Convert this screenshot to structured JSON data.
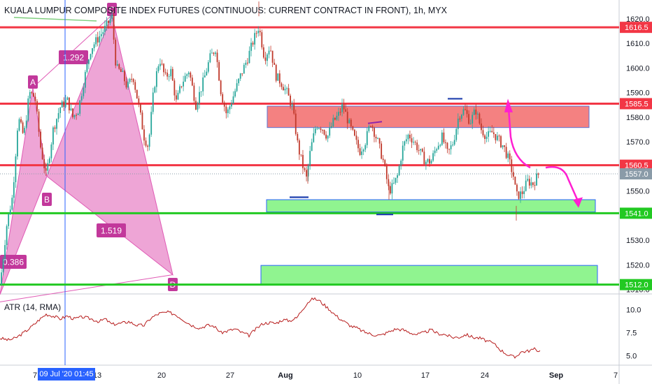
{
  "header": {
    "title": "KUALA LUMPUR COMPOSITE INDEX FUTURES (CONTINUOUS: CURRENT CONTRACT IN FRONT), 1h, MYX"
  },
  "indicator": {
    "title": "ATR (14, RMA)",
    "ticks": [
      "10.0",
      "7.5",
      "5.0"
    ],
    "tick_values": [
      10.0,
      7.5,
      5.0
    ],
    "range": [
      4.2,
      11.4
    ],
    "color": "#b71c1c"
  },
  "crosshair": {
    "date_label": "09 Jul '20   01:45"
  },
  "price_axis": {
    "ticks": [
      "1620.0",
      "1610.0",
      "1600.0",
      "1590.0",
      "1580.0",
      "1570.0",
      "1560.0",
      "1550.0",
      "1540.0",
      "1530.0",
      "1520.0",
      "1510.0"
    ],
    "tick_values": [
      1620,
      1610,
      1600,
      1590,
      1580,
      1570,
      1560,
      1550,
      1540,
      1530,
      1520,
      1510
    ],
    "range": [
      1508.5,
      1622.5
    ]
  },
  "time_axis": {
    "labels": [
      "7",
      "13",
      "20",
      "27",
      "Aug",
      "10",
      "17",
      "24",
      "Sep",
      "7"
    ],
    "bold": [
      "Aug",
      "Sep"
    ]
  },
  "levels": [
    {
      "label": "1616.5",
      "value": 1616.5,
      "color": "#f23645"
    },
    {
      "label": "1585.5",
      "value": 1585.5,
      "color": "#f23645"
    },
    {
      "label": "1560.5",
      "value": 1560.5,
      "color": "#f23645"
    },
    {
      "label": "1541.0",
      "value": 1541.0,
      "color": "#22c922"
    },
    {
      "label": "1512.0",
      "value": 1512.0,
      "color": "#22c922"
    }
  ],
  "last_price": {
    "label": "1557.0",
    "value": 1557.0,
    "color": "#8a9ba8"
  },
  "zones": [
    {
      "type": "resistance",
      "top": 1584.5,
      "bottom": 1575.8,
      "color": "#f26b6b"
    },
    {
      "type": "support",
      "top": 1546.5,
      "bottom": 1541.5,
      "color": "#7df27d"
    },
    {
      "type": "support",
      "top": 1519.8,
      "bottom": 1511.8,
      "color": "#7df27d"
    }
  ],
  "pattern": {
    "points": [
      {
        "label": "A",
        "value": 1592
      },
      {
        "label": "B",
        "value": 1556
      },
      {
        "label": "C",
        "value": 1621.5
      },
      {
        "label": "D",
        "value": 1516
      }
    ],
    "ratios": [
      "1.292",
      "1.519",
      "0.386"
    ],
    "color": "#e05bb5"
  },
  "candles": {
    "up_color": "#26a69a",
    "down_color": "#c0392b",
    "anchors": [
      [
        0,
        1512
      ],
      [
        10,
        1537
      ],
      [
        18,
        1548
      ],
      [
        26,
        1580
      ],
      [
        34,
        1572
      ],
      [
        42,
        1590
      ],
      [
        50,
        1588
      ],
      [
        58,
        1568
      ],
      [
        66,
        1556
      ],
      [
        76,
        1575
      ],
      [
        86,
        1584
      ],
      [
        96,
        1587
      ],
      [
        104,
        1580
      ],
      [
        112,
        1583
      ],
      [
        120,
        1595
      ],
      [
        130,
        1608
      ],
      [
        140,
        1612
      ],
      [
        150,
        1616
      ],
      [
        160,
        1621
      ],
      [
        166,
        1600
      ],
      [
        174,
        1598
      ],
      [
        182,
        1592
      ],
      [
        190,
        1597
      ],
      [
        198,
        1585
      ],
      [
        206,
        1572
      ],
      [
        212,
        1568
      ],
      [
        220,
        1592
      ],
      [
        228,
        1604
      ],
      [
        236,
        1596
      ],
      [
        244,
        1599
      ],
      [
        252,
        1586
      ],
      [
        260,
        1594
      ],
      [
        270,
        1599
      ],
      [
        280,
        1585
      ],
      [
        290,
        1594
      ],
      [
        300,
        1604
      ],
      [
        308,
        1608
      ],
      [
        316,
        1590
      ],
      [
        324,
        1581
      ],
      [
        334,
        1589
      ],
      [
        344,
        1597
      ],
      [
        354,
        1604
      ],
      [
        362,
        1611
      ],
      [
        370,
        1617
      ],
      [
        378,
        1604
      ],
      [
        386,
        1609
      ],
      [
        394,
        1597
      ],
      [
        402,
        1594
      ],
      [
        410,
        1590
      ],
      [
        418,
        1584
      ],
      [
        426,
        1568
      ],
      [
        432,
        1561
      ],
      [
        438,
        1555
      ],
      [
        444,
        1567
      ],
      [
        452,
        1577
      ],
      [
        460,
        1576
      ],
      [
        468,
        1572
      ],
      [
        476,
        1578
      ],
      [
        484,
        1581
      ],
      [
        490,
        1585
      ],
      [
        498,
        1578
      ],
      [
        506,
        1572
      ],
      [
        514,
        1566
      ],
      [
        522,
        1570
      ],
      [
        530,
        1578
      ],
      [
        540,
        1570
      ],
      [
        548,
        1562
      ],
      [
        556,
        1550
      ],
      [
        562,
        1552
      ],
      [
        568,
        1556
      ],
      [
        576,
        1568
      ],
      [
        584,
        1573
      ],
      [
        592,
        1570
      ],
      [
        600,
        1566
      ],
      [
        608,
        1562
      ],
      [
        616,
        1562
      ],
      [
        624,
        1568
      ],
      [
        632,
        1572
      ],
      [
        640,
        1565
      ],
      [
        648,
        1570
      ],
      [
        656,
        1581
      ],
      [
        664,
        1583
      ],
      [
        672,
        1578
      ],
      [
        680,
        1583
      ],
      [
        688,
        1575
      ],
      [
        696,
        1572
      ],
      [
        704,
        1574
      ],
      [
        712,
        1571
      ],
      [
        720,
        1568
      ],
      [
        728,
        1562
      ],
      [
        734,
        1556
      ],
      [
        738,
        1548
      ],
      [
        746,
        1549
      ],
      [
        754,
        1554
      ],
      [
        762,
        1553
      ],
      [
        770,
        1557
      ]
    ]
  },
  "atr_series": {
    "anchors": [
      [
        0,
        6.9
      ],
      [
        12,
        6.7
      ],
      [
        22,
        6.9
      ],
      [
        34,
        7.5
      ],
      [
        46,
        8.2
      ],
      [
        56,
        8.9
      ],
      [
        66,
        9.5
      ],
      [
        76,
        9.3
      ],
      [
        86,
        9.0
      ],
      [
        96,
        9.3
      ],
      [
        106,
        9.0
      ],
      [
        118,
        9.2
      ],
      [
        130,
        9.0
      ],
      [
        142,
        8.7
      ],
      [
        150,
        9.0
      ],
      [
        160,
        8.4
      ],
      [
        172,
        8.5
      ],
      [
        184,
        8.7
      ],
      [
        196,
        8.3
      ],
      [
        206,
        8.3
      ],
      [
        216,
        9.1
      ],
      [
        228,
        9.6
      ],
      [
        240,
        9.7
      ],
      [
        250,
        9.5
      ],
      [
        262,
        8.9
      ],
      [
        274,
        8.3
      ],
      [
        286,
        8.0
      ],
      [
        296,
        8.3
      ],
      [
        306,
        8.2
      ],
      [
        316,
        7.5
      ],
      [
        326,
        7.7
      ],
      [
        336,
        7.9
      ],
      [
        346,
        7.5
      ],
      [
        356,
        7.2
      ],
      [
        366,
        7.9
      ],
      [
        376,
        8.5
      ],
      [
        386,
        8.6
      ],
      [
        394,
        8.5
      ],
      [
        404,
        8.9
      ],
      [
        414,
        8.8
      ],
      [
        424,
        9.1
      ],
      [
        432,
        10.0
      ],
      [
        440,
        10.8
      ],
      [
        448,
        11.2
      ],
      [
        456,
        11.0
      ],
      [
        462,
        10.6
      ],
      [
        470,
        10.1
      ],
      [
        478,
        9.5
      ],
      [
        486,
        9.0
      ],
      [
        494,
        8.6
      ],
      [
        502,
        8.2
      ],
      [
        510,
        8.0
      ],
      [
        520,
        7.6
      ],
      [
        532,
        7.3
      ],
      [
        544,
        7.2
      ],
      [
        556,
        7.6
      ],
      [
        566,
        7.9
      ],
      [
        576,
        7.8
      ],
      [
        586,
        7.5
      ],
      [
        596,
        7.3
      ],
      [
        606,
        7.5
      ],
      [
        616,
        7.8
      ],
      [
        626,
        7.4
      ],
      [
        636,
        7.3
      ],
      [
        646,
        7.0
      ],
      [
        656,
        7.0
      ],
      [
        666,
        7.3
      ],
      [
        676,
        7.0
      ],
      [
        686,
        6.9
      ],
      [
        696,
        6.6
      ],
      [
        706,
        6.3
      ],
      [
        716,
        5.6
      ],
      [
        726,
        5.1
      ],
      [
        736,
        4.8
      ],
      [
        744,
        5.4
      ],
      [
        754,
        5.5
      ],
      [
        764,
        5.7
      ],
      [
        772,
        5.5
      ]
    ]
  }
}
